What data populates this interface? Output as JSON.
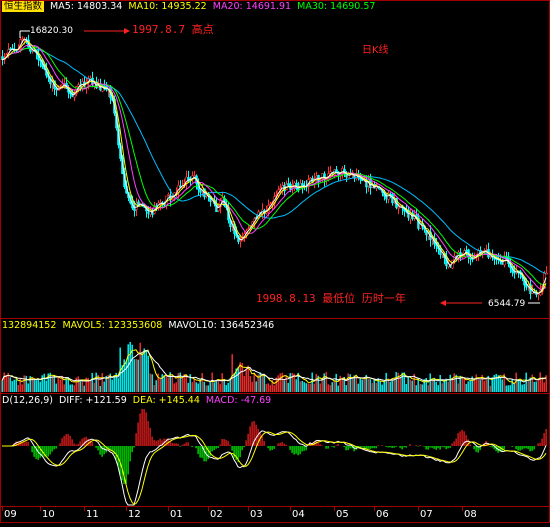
{
  "header": {
    "title": "恒生指数",
    "ma5": "MA5: 14803.34",
    "ma10": "MA10: 14935.22",
    "ma20": "MA20: 14691.91",
    "ma30": "MA30: 14690.57"
  },
  "annotations": {
    "high_value": "16820.30",
    "high_note": "1997.8.7 高点",
    "low_note": "1998.8.13 最低位 历时一年",
    "low_value": "6544.79",
    "period": "日K线"
  },
  "volume_header": {
    "volume": "132894152",
    "mavol5": "MAVOL5: 123353608",
    "mavol10": "MAVOL10: 136452346"
  },
  "macd_header": {
    "params": "D(12,26,9)",
    "diff": "DIFF: +121.59",
    "dea": "DEA: +145.44",
    "macd": "MACD: -47.69"
  },
  "x_axis": {
    "months": [
      "09",
      "10",
      "11",
      "12",
      "01",
      "02",
      "03",
      "04",
      "05",
      "06",
      "07",
      "08"
    ]
  },
  "colors": {
    "up": "#ff3030",
    "down": "#00ffff",
    "ma5": "#ffffff",
    "ma10": "#ffff00",
    "ma20": "#ff40ff",
    "ma30": "#00ff00",
    "ma60": "#00c0ff"
  },
  "chart_data": {
    "type": "candlestick",
    "series_name": "恒生指数",
    "high": 16820.3,
    "low": 6544.79
  }
}
